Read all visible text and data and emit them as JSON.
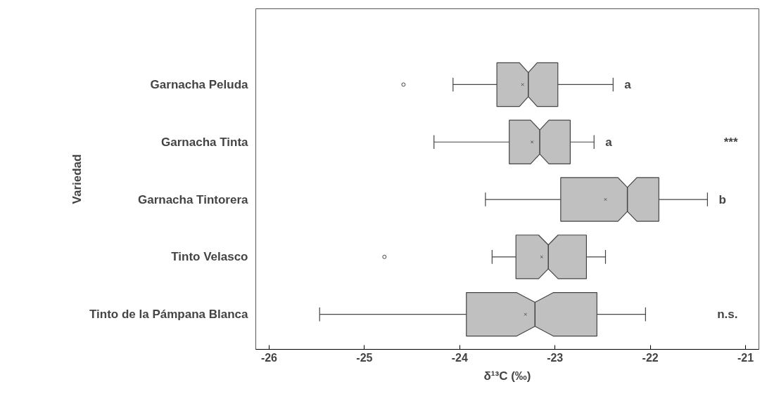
{
  "chart_data": {
    "type": "box",
    "xlabel": "δ¹³C (‰)",
    "ylabel": "Variedad",
    "orientation": "horizontal",
    "categories": [
      "Garnacha Peluda",
      "Garnacha Tinta",
      "Garnacha Tintorera",
      "Tinto Velasco",
      "Tinto de la Pámpana Blanca"
    ],
    "boxes": [
      {
        "low": -24.07,
        "q1": -23.61,
        "median": -23.28,
        "q3": -22.97,
        "high": -22.39,
        "mean": -23.34,
        "outliers": [
          -24.59
        ]
      },
      {
        "low": -24.27,
        "q1": -23.48,
        "median": -23.16,
        "q3": -22.84,
        "high": -22.59,
        "mean": -23.24
      },
      {
        "low": -23.73,
        "q1": -22.94,
        "median": -22.24,
        "q3": -21.91,
        "high": -21.4,
        "mean": -22.47
      },
      {
        "low": -23.66,
        "q1": -23.41,
        "median": -23.07,
        "q3": -22.67,
        "high": -22.47,
        "mean": -23.14,
        "outliers": [
          -24.79
        ]
      },
      {
        "low": -25.47,
        "q1": -23.93,
        "median": -23.21,
        "q3": -22.56,
        "high": -22.05,
        "mean": -23.31
      }
    ],
    "color": "#c0c0c0",
    "xlim": [
      -26.14,
      -20.86
    ],
    "xticks": [
      -26,
      -25,
      -24,
      -23,
      -22,
      -21
    ],
    "grid": false,
    "annotations": [
      "a",
      "a",
      "b",
      "***",
      "n.s."
    ]
  }
}
